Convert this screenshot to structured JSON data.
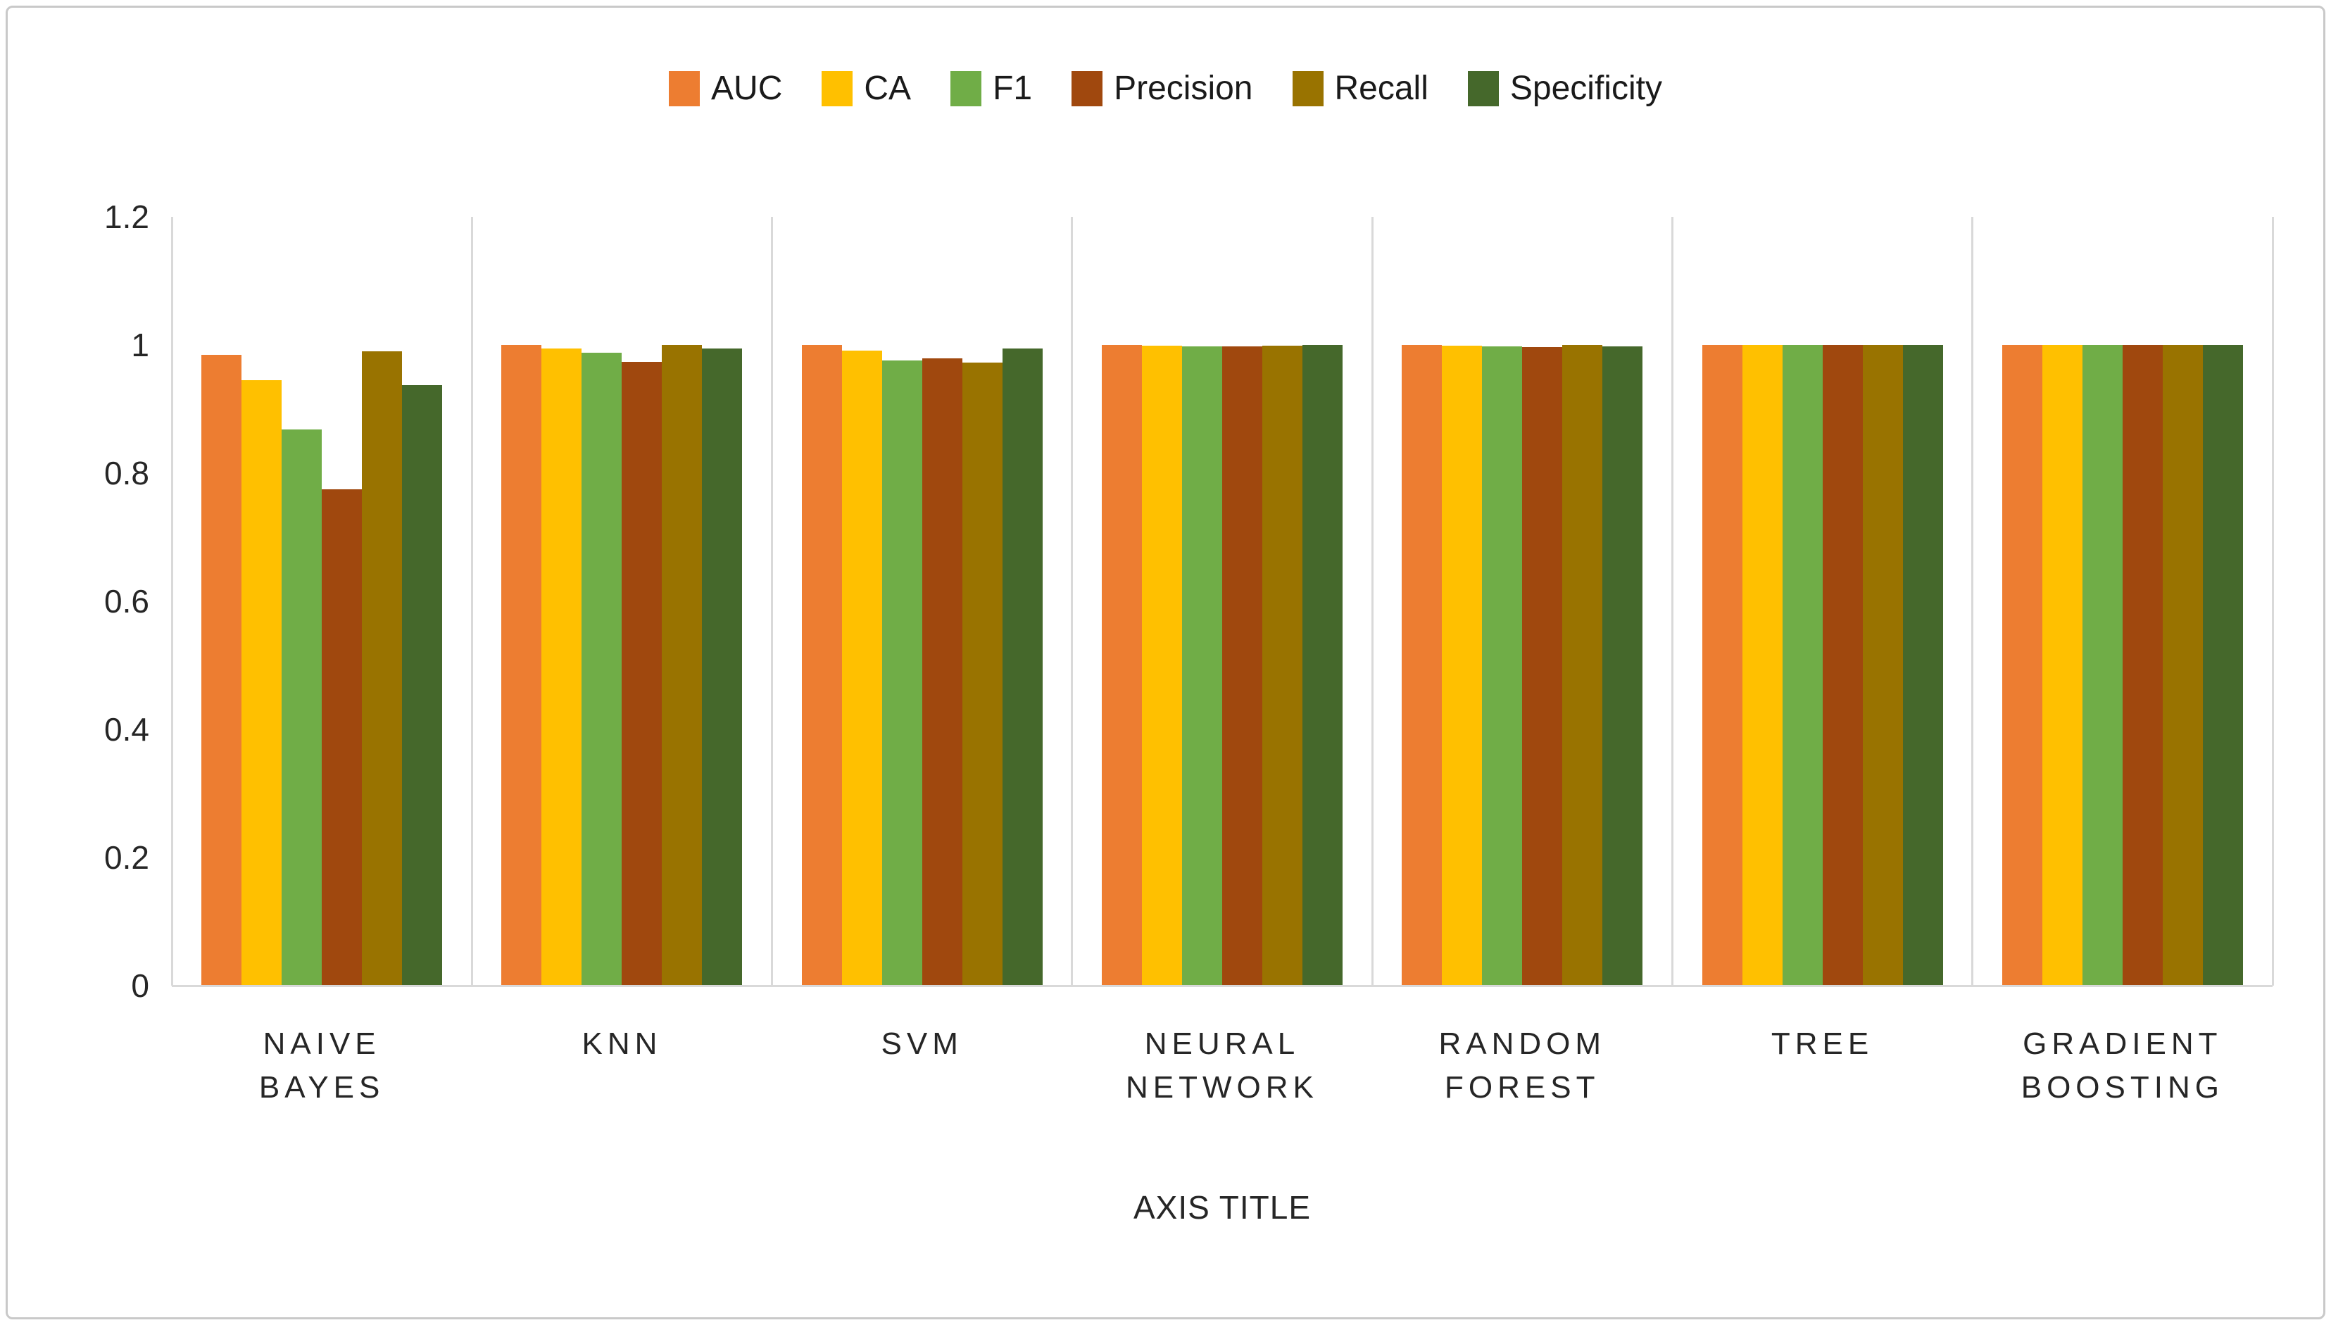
{
  "axis": {
    "y_tick_labels": [
      "1.2",
      "1",
      "0.8",
      "0.6",
      "0.4",
      "0.2",
      "0"
    ],
    "x_axis_title": "AXIS TITLE"
  },
  "chart_data": {
    "type": "bar",
    "title": "",
    "xlabel": "AXIS TITLE",
    "ylabel": "",
    "ylim": [
      0,
      1.2
    ],
    "yticks": [
      0,
      0.2,
      0.4,
      0.6,
      0.8,
      1,
      1.2
    ],
    "grid": "vertical-panel-separators",
    "legend_position": "top",
    "categories": [
      "NAIVE BAYES",
      "KNN",
      "SVM",
      "NEURAL NETWORK",
      "RANDOM FOREST",
      "TREE",
      "GRADIENT BOOSTING"
    ],
    "series": [
      {
        "name": "AUC",
        "color": "#ED7D31",
        "values": [
          0.985,
          1.0,
          1.0,
          1.0,
          1.0,
          1.0,
          1.0
        ]
      },
      {
        "name": "CA",
        "color": "#FFC000",
        "values": [
          0.945,
          0.995,
          0.991,
          0.999,
          0.999,
          1.0,
          1.0
        ]
      },
      {
        "name": "F1",
        "color": "#70AD47",
        "values": [
          0.868,
          0.988,
          0.976,
          0.998,
          0.998,
          1.0,
          1.0
        ]
      },
      {
        "name": "Precision",
        "color": "#A0480E",
        "values": [
          0.775,
          0.974,
          0.979,
          0.998,
          0.997,
          1.0,
          1.0
        ]
      },
      {
        "name": "Recall",
        "color": "#997300",
        "values": [
          0.99,
          1.0,
          0.973,
          0.999,
          1.0,
          1.0,
          1.0
        ]
      },
      {
        "name": "Specificity",
        "color": "#45682B",
        "values": [
          0.937,
          0.994,
          0.995,
          1.0,
          0.998,
          1.0,
          1.0
        ]
      }
    ]
  },
  "colors": {
    "separator": "#D9D9D9",
    "frame_border": "#C9C9C9",
    "text": "#262626"
  }
}
